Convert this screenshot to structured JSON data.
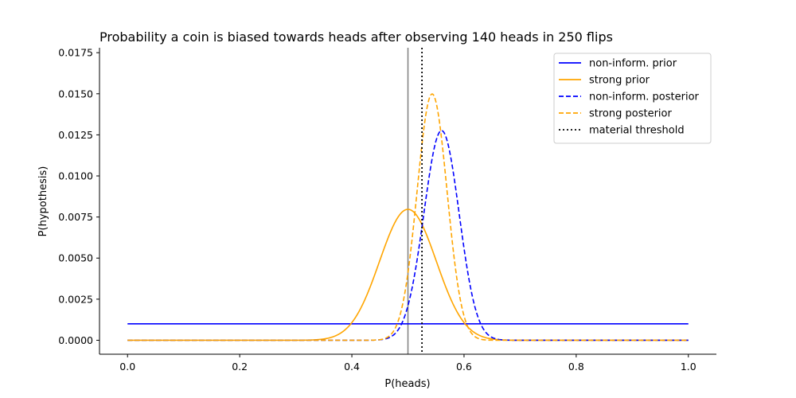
{
  "chart_data": {
    "type": "line",
    "title": "Probability a coin is biased towards heads after observing 140 heads in 250 flips",
    "xlabel": "P(heads)",
    "ylabel": "P(hypothesis)",
    "xlim": [
      -0.05,
      1.05
    ],
    "ylim": [
      -0.00085,
      0.0178
    ],
    "xticks": [
      0.0,
      0.2,
      0.4,
      0.6,
      0.8,
      1.0
    ],
    "xtick_labels": [
      "0.0",
      "0.2",
      "0.4",
      "0.6",
      "0.8",
      "1.0"
    ],
    "yticks": [
      0.0,
      0.0025,
      0.005,
      0.0075,
      0.01,
      0.0125,
      0.015,
      0.0175
    ],
    "ytick_labels": [
      "0.0000",
      "0.0025",
      "0.0050",
      "0.0075",
      "0.0100",
      "0.0125",
      "0.0150",
      "0.0175"
    ],
    "grid": false,
    "legend_position": "top-right",
    "grid_points": 1000,
    "observed": {
      "heads": 140,
      "flips": 250
    },
    "series": [
      {
        "name": "non-inform. prior",
        "kind": "uniform",
        "color": "#0000ff",
        "style": "solid"
      },
      {
        "name": "strong prior",
        "kind": "beta",
        "alpha": 50,
        "beta": 50,
        "color": "#ffa500",
        "style": "solid"
      },
      {
        "name": "non-inform. posterior",
        "kind": "beta",
        "alpha": 141,
        "beta": 111,
        "color": "#0000ff",
        "style": "dashed"
      },
      {
        "name": "strong posterior",
        "kind": "beta",
        "alpha": 190,
        "beta": 160,
        "color": "#ffa500",
        "style": "dashed"
      },
      {
        "name": "material threshold",
        "kind": "vline",
        "x": 0.525,
        "color": "#000000",
        "style": "dotted"
      }
    ],
    "reference_line": {
      "x": 0.5,
      "color": "#808080",
      "style": "solid"
    }
  }
}
